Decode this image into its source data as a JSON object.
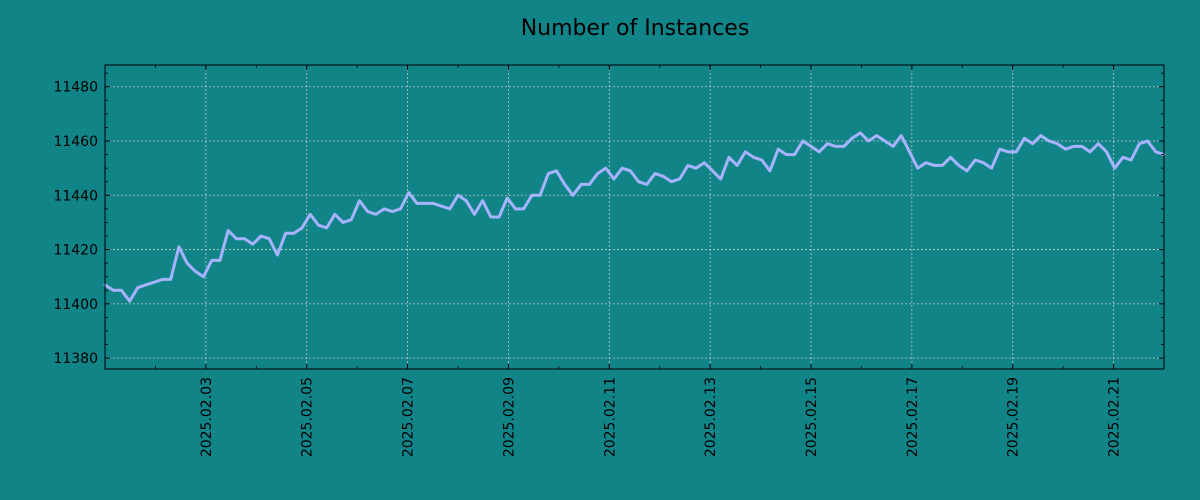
{
  "chart_data": {
    "type": "line",
    "title": "Number of Instances",
    "xlabel": "",
    "ylabel": "",
    "grid": true,
    "ylim": [
      11376,
      11488
    ],
    "xlim": [
      "2025.02.01",
      "2025.02.22"
    ],
    "yticks": [
      11380,
      11400,
      11420,
      11440,
      11460,
      11480
    ],
    "xticks": [
      "2025.02.03",
      "2025.02.05",
      "2025.02.07",
      "2025.02.09",
      "2025.02.11",
      "2025.02.13",
      "2025.02.15",
      "2025.02.17",
      "2025.02.19",
      "2025.02.21"
    ],
    "colors": {
      "background": "#118487",
      "line": "#a6b3ff",
      "axes": "#000000",
      "grid": "#c8c8c8"
    },
    "series": [
      {
        "values": [
          11407,
          11405,
          11405,
          11401,
          11406,
          11407,
          11408,
          11409,
          11409,
          11421,
          11415,
          11412,
          11410,
          11416,
          11416,
          11427,
          11424,
          11424,
          11422,
          11425,
          11424,
          11418,
          11426,
          11426,
          11428,
          11433,
          11429,
          11428,
          11433,
          11430,
          11431,
          11438,
          11434,
          11433,
          11435,
          11434,
          11435,
          11441,
          11437,
          11437,
          11437,
          11436,
          11435,
          11440,
          11438,
          11433,
          11438,
          11432,
          11432,
          11439,
          11435,
          11435,
          11440,
          11440,
          11448,
          11449,
          11444,
          11440,
          11444,
          11444,
          11448,
          11450,
          11446,
          11450,
          11449,
          11445,
          11444,
          11448,
          11447,
          11445,
          11446,
          11451,
          11450,
          11452,
          11449,
          11446,
          11454,
          11451,
          11456,
          11454,
          11453,
          11449,
          11457,
          11455,
          11455,
          11460,
          11458,
          11456,
          11459,
          11458,
          11458,
          11461,
          11463,
          11460,
          11462,
          11460,
          11458,
          11462,
          11456,
          11450,
          11452,
          11451,
          11451,
          11454,
          11451,
          11449,
          11453,
          11452,
          11450,
          11457,
          11456,
          11456,
          11461,
          11459,
          11462,
          11460,
          11459,
          11457,
          11458,
          11458,
          11456,
          11459,
          11456,
          11450,
          11454,
          11453,
          11459,
          11460,
          11456,
          11455
        ]
      }
    ]
  }
}
